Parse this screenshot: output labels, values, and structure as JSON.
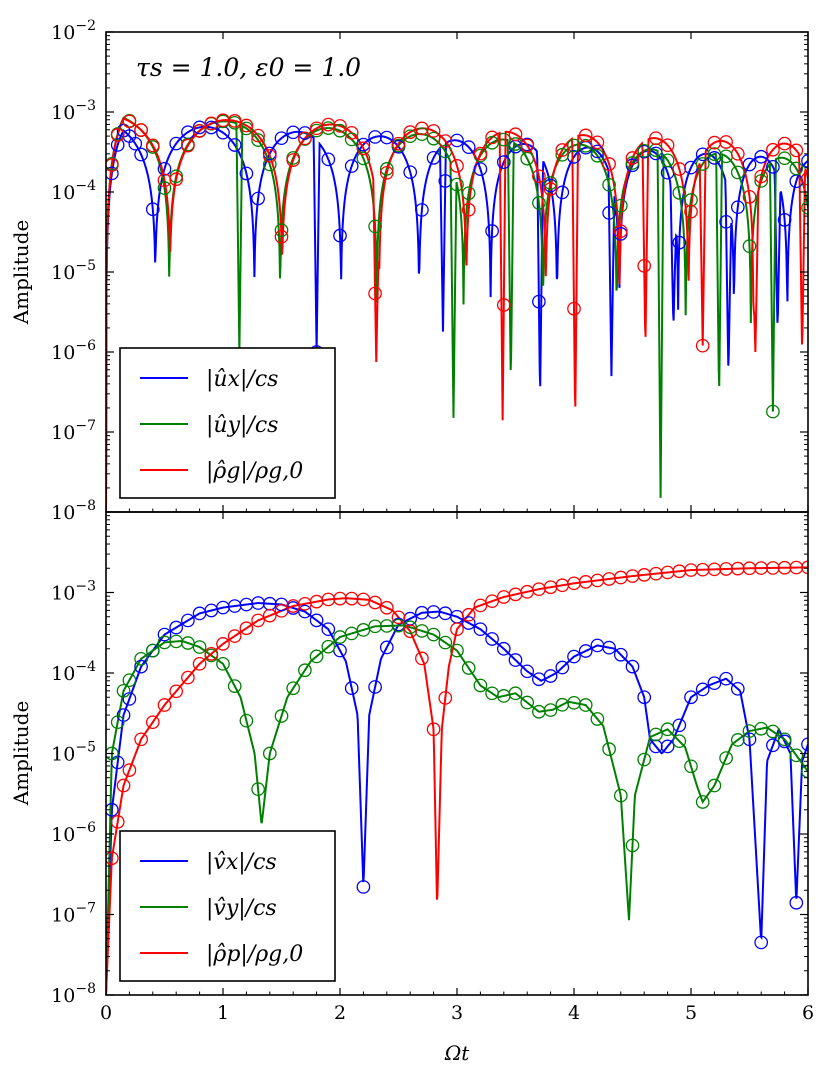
{
  "chart_data": [
    {
      "type": "line",
      "panel": "top",
      "title": "",
      "annotation": "τs = 1.0, ε0 = 1.0",
      "xlabel": "",
      "ylabel": "Amplitude",
      "xlim": [
        0,
        6
      ],
      "ylim": [
        1e-08,
        0.01
      ],
      "yscale": "log",
      "xticks": [
        0,
        1,
        2,
        3,
        4,
        5,
        6
      ],
      "yticks": [
        -8,
        -7,
        -6,
        -5,
        -4,
        -3,
        -2
      ],
      "legend_location": "lower-left",
      "series": [
        {
          "name": "|ûx|/cs",
          "color": "#0000ff",
          "amplitude": 0.00075,
          "decay": 0.18,
          "period": 2.0,
          "phase": 0.06,
          "floor": 1.2e-05,
          "freq_growth": 0.32,
          "dips": [
            {
              "x": 1.8,
              "y": 1e-06
            },
            {
              "x": 2.88,
              "y": 1.8e-06
            },
            {
              "x": 3.71,
              "y": 2.5e-07
            },
            {
              "x": 4.32,
              "y": 5e-07
            },
            {
              "x": 4.85,
              "y": 2e-06
            },
            {
              "x": 5.32,
              "y": 5e-07
            },
            {
              "x": 5.74,
              "y": 1.8e-06
            }
          ]
        },
        {
          "name": "|ûy|/cs",
          "color": "#008000",
          "amplitude": 0.00095,
          "decay": 0.22,
          "period": 2.28,
          "phase": 1.14,
          "floor": 8e-06,
          "freq_growth": 0.3,
          "dips": [
            {
              "x": 1.14,
              "y": 1e-06
            },
            {
              "x": 2.97,
              "y": 1.5e-07
            },
            {
              "x": 3.46,
              "y": 4e-07
            },
            {
              "x": 4.74,
              "y": 1.5e-08
            },
            {
              "x": 5.24,
              "y": 2.5e-07
            },
            {
              "x": 5.7,
              "y": 1.8e-07
            }
          ]
        },
        {
          "name": "|ρ̂g|/ρg,0",
          "color": "#ff0000",
          "amplitude": 0.0009,
          "decay": 0.14,
          "period": 2.32,
          "phase": 1.16,
          "floor": 2e-05,
          "freq_growth": 0.31,
          "dips": [
            {
              "x": 2.31,
              "y": 7.5e-07
            },
            {
              "x": 3.39,
              "y": 1.4e-07
            },
            {
              "x": 4.01,
              "y": 1.3e-07
            },
            {
              "x": 4.61,
              "y": 1.1e-06
            },
            {
              "x": 5.1,
              "y": 1.2e-06
            },
            {
              "x": 5.55,
              "y": 1e-06
            },
            {
              "x": 5.95,
              "y": 9e-07
            }
          ]
        }
      ],
      "markers": [
        {
          "series": 0,
          "x": [
            0.05,
            0.1,
            0.15,
            0.2,
            0.25,
            0.3,
            0.4,
            0.5,
            0.6,
            0.7,
            0.8,
            0.9,
            1.0,
            1.1,
            1.2,
            1.3,
            1.4,
            1.5,
            1.6,
            1.7,
            1.8,
            1.9,
            2.0,
            2.1,
            2.2,
            2.3,
            2.4,
            2.5,
            2.6,
            2.7,
            2.8,
            2.9,
            3.0,
            3.1,
            3.2,
            3.3,
            3.4,
            3.5,
            3.6,
            3.7,
            3.8,
            3.9,
            4.0,
            4.1,
            4.2,
            4.3,
            4.4,
            4.5,
            4.6,
            4.7,
            4.8,
            4.9,
            5.0,
            5.1,
            5.2,
            5.3,
            5.4,
            5.5,
            5.6,
            5.7,
            5.8,
            5.9,
            6.0
          ]
        },
        {
          "series": 1,
          "x": [
            0.05,
            0.1,
            0.2,
            0.3,
            0.4,
            0.5,
            0.6,
            0.7,
            0.8,
            0.9,
            1.0,
            1.1,
            1.2,
            1.3,
            1.4,
            1.5,
            1.6,
            1.7,
            1.8,
            1.9,
            2.0,
            2.1,
            2.2,
            2.3,
            2.4,
            2.5,
            2.6,
            2.7,
            2.8,
            2.9,
            3.0,
            3.1,
            3.2,
            3.3,
            3.4,
            3.5,
            3.6,
            3.7,
            3.8,
            3.9,
            4.0,
            4.1,
            4.2,
            4.3,
            4.4,
            4.5,
            4.6,
            4.7,
            4.8,
            4.9,
            5.0,
            5.1,
            5.2,
            5.3,
            5.4,
            5.5,
            5.6,
            5.7,
            5.8,
            5.9,
            6.0
          ]
        },
        {
          "series": 2,
          "x": [
            0.05,
            0.1,
            0.2,
            0.3,
            0.4,
            0.5,
            0.6,
            0.7,
            0.8,
            0.9,
            1.0,
            1.1,
            1.2,
            1.3,
            1.4,
            1.5,
            1.6,
            1.7,
            1.8,
            1.9,
            2.0,
            2.1,
            2.2,
            2.3,
            2.4,
            2.5,
            2.6,
            2.7,
            2.8,
            2.9,
            3.0,
            3.1,
            3.2,
            3.3,
            3.4,
            3.5,
            3.6,
            3.7,
            3.8,
            3.9,
            4.0,
            4.1,
            4.2,
            4.3,
            4.4,
            4.5,
            4.6,
            4.7,
            4.8,
            4.9,
            5.0,
            5.1,
            5.2,
            5.3,
            5.4,
            5.5,
            5.6,
            5.7,
            5.8,
            5.9,
            6.0
          ]
        }
      ]
    },
    {
      "type": "line",
      "panel": "bottom",
      "title": "",
      "xlabel": "Ωt",
      "ylabel": "Amplitude",
      "xlim": [
        0,
        6
      ],
      "ylim": [
        1e-08,
        0.01
      ],
      "yscale": "log",
      "xticks": [
        0,
        1,
        2,
        3,
        4,
        5,
        6
      ],
      "yticks": [
        -8,
        -7,
        -6,
        -5,
        -4,
        -3
      ],
      "legend_location": "lower-left",
      "series": [
        {
          "name": "|v̂x|/cs",
          "color": "#0000ff",
          "anchors": [
            [
              0,
              1e-08
            ],
            [
              0.05,
              2e-06
            ],
            [
              0.15,
              3e-05
            ],
            [
              0.3,
              0.00012
            ],
            [
              0.5,
              0.0003
            ],
            [
              0.8,
              0.00055
            ],
            [
              1.0,
              0.00065
            ],
            [
              1.3,
              0.00074
            ],
            [
              1.5,
              0.00071
            ],
            [
              1.7,
              0.00058
            ],
            [
              1.9,
              0.00035
            ],
            [
              2.05,
              0.00014
            ],
            [
              2.15,
              3e-05
            ],
            [
              2.2,
              2.2e-07
            ],
            [
              2.25,
              3e-05
            ],
            [
              2.35,
              0.00015
            ],
            [
              2.5,
              0.0004
            ],
            [
              2.7,
              0.00056
            ],
            [
              2.85,
              0.00058
            ],
            [
              3.0,
              0.0005
            ],
            [
              3.2,
              0.00035
            ],
            [
              3.4,
              0.0002
            ],
            [
              3.6,
              0.000105
            ],
            [
              3.72,
              8e-05
            ],
            [
              3.85,
              0.0001
            ],
            [
              4.0,
              0.00016
            ],
            [
              4.2,
              0.00022
            ],
            [
              4.35,
              0.0002
            ],
            [
              4.5,
              0.00012
            ],
            [
              4.6,
              5e-05
            ],
            [
              4.65,
              1.5e-05
            ],
            [
              4.75,
              1e-05
            ],
            [
              4.85,
              1.5e-05
            ],
            [
              5.0,
              5e-05
            ],
            [
              5.15,
              7e-05
            ],
            [
              5.3,
              8.5e-05
            ],
            [
              5.42,
              6e-05
            ],
            [
              5.5,
              1.5e-05
            ],
            [
              5.6,
              4.5e-08
            ],
            [
              5.65,
              8e-06
            ],
            [
              5.75,
              2e-05
            ],
            [
              5.85,
              1e-05
            ],
            [
              5.9,
              1.4e-07
            ],
            [
              5.95,
              8e-06
            ],
            [
              6.0,
              1.3e-05
            ]
          ]
        },
        {
          "name": "|v̂y|/cs",
          "color": "#008000",
          "anchors": [
            [
              0,
              1e-08
            ],
            [
              0.05,
              1e-05
            ],
            [
              0.15,
              6e-05
            ],
            [
              0.3,
              0.00015
            ],
            [
              0.5,
              0.00024
            ],
            [
              0.65,
              0.00025
            ],
            [
              0.8,
              0.00021
            ],
            [
              1.0,
              0.00013
            ],
            [
              1.15,
              5e-05
            ],
            [
              1.27,
              1e-05
            ],
            [
              1.33,
              1.3e-06
            ],
            [
              1.4,
              1e-05
            ],
            [
              1.55,
              5e-05
            ],
            [
              1.75,
              0.00014
            ],
            [
              2.0,
              0.00028
            ],
            [
              2.3,
              0.00038
            ],
            [
              2.55,
              0.00039
            ],
            [
              2.8,
              0.0003
            ],
            [
              3.0,
              0.00019
            ],
            [
              3.2,
              7e-05
            ],
            [
              3.35,
              5e-05
            ],
            [
              3.5,
              5.6e-05
            ],
            [
              3.7,
              3.3e-05
            ],
            [
              3.82,
              3.5e-05
            ],
            [
              3.95,
              4.4e-05
            ],
            [
              4.1,
              4e-05
            ],
            [
              4.25,
              2.2e-05
            ],
            [
              4.4,
              3e-06
            ],
            [
              4.47,
              8.5e-08
            ],
            [
              4.52,
              3e-06
            ],
            [
              4.65,
              1.6e-05
            ],
            [
              4.8,
              2e-05
            ],
            [
              4.95,
              1.2e-05
            ],
            [
              5.05,
              4e-06
            ],
            [
              5.1,
              2.5e-06
            ],
            [
              5.2,
              4e-06
            ],
            [
              5.35,
              1.3e-05
            ],
            [
              5.5,
              1.9e-05
            ],
            [
              5.65,
              2.1e-05
            ],
            [
              5.8,
              1.5e-05
            ],
            [
              6.0,
              6e-06
            ]
          ]
        },
        {
          "name": "|ρ̂p|/ρg,0",
          "color": "#ff0000",
          "anchors": [
            [
              0,
              1e-08
            ],
            [
              0.05,
              5e-07
            ],
            [
              0.15,
              4e-06
            ],
            [
              0.3,
              1.5e-05
            ],
            [
              0.5,
              4e-05
            ],
            [
              0.8,
              0.00013
            ],
            [
              1.0,
              0.00023
            ],
            [
              1.3,
              0.00045
            ],
            [
              1.6,
              0.00068
            ],
            [
              1.9,
              0.00082
            ],
            [
              2.05,
              0.00085
            ],
            [
              2.25,
              0.00081
            ],
            [
              2.45,
              0.0006
            ],
            [
              2.6,
              0.00033
            ],
            [
              2.72,
              0.00013
            ],
            [
              2.8,
              2e-05
            ],
            [
              2.83,
              1.2e-07
            ],
            [
              2.87,
              2e-05
            ],
            [
              2.93,
              0.00012
            ],
            [
              3.0,
              0.00035
            ],
            [
              3.15,
              0.00065
            ],
            [
              3.4,
              0.00088
            ],
            [
              3.7,
              0.0011
            ],
            [
              4.0,
              0.0013
            ],
            [
              4.5,
              0.0016
            ],
            [
              5.0,
              0.0019
            ],
            [
              5.5,
              0.002
            ],
            [
              6.0,
              0.00205
            ]
          ]
        }
      ],
      "markers": [
        {
          "series": 0,
          "x": [
            0.05,
            0.1,
            0.15,
            0.2,
            0.3,
            0.4,
            0.5,
            0.6,
            0.7,
            0.8,
            0.9,
            1.0,
            1.1,
            1.2,
            1.3,
            1.4,
            1.5,
            1.6,
            1.7,
            1.8,
            1.9,
            2.0,
            2.1,
            2.2,
            2.3,
            2.4,
            2.5,
            2.6,
            2.7,
            2.8,
            2.9,
            3.0,
            3.1,
            3.2,
            3.3,
            3.4,
            3.5,
            3.6,
            3.7,
            3.8,
            3.9,
            4.0,
            4.1,
            4.2,
            4.3,
            4.4,
            4.5,
            4.6,
            4.7,
            4.8,
            4.9,
            5.0,
            5.1,
            5.2,
            5.3,
            5.4,
            5.5,
            5.6,
            5.7,
            5.8,
            5.9,
            6.0
          ]
        },
        {
          "series": 1,
          "x": [
            0.05,
            0.1,
            0.15,
            0.2,
            0.3,
            0.4,
            0.5,
            0.6,
            0.7,
            0.8,
            0.9,
            1.0,
            1.1,
            1.2,
            1.3,
            1.4,
            1.5,
            1.6,
            1.7,
            1.8,
            1.9,
            2.0,
            2.1,
            2.2,
            2.3,
            2.4,
            2.5,
            2.6,
            2.7,
            2.8,
            2.9,
            3.0,
            3.1,
            3.2,
            3.3,
            3.4,
            3.5,
            3.6,
            3.7,
            3.8,
            3.9,
            4.0,
            4.1,
            4.2,
            4.3,
            4.4,
            4.5,
            4.6,
            4.7,
            4.8,
            4.9,
            5.0,
            5.1,
            5.2,
            5.3,
            5.4,
            5.5,
            5.6,
            5.7,
            5.8,
            5.9,
            6.0
          ]
        },
        {
          "series": 2,
          "x": [
            0.05,
            0.1,
            0.15,
            0.2,
            0.3,
            0.4,
            0.5,
            0.6,
            0.7,
            0.8,
            0.9,
            1.0,
            1.1,
            1.2,
            1.3,
            1.4,
            1.5,
            1.6,
            1.7,
            1.8,
            1.9,
            2.0,
            2.1,
            2.2,
            2.3,
            2.4,
            2.5,
            2.6,
            2.7,
            2.8,
            2.9,
            3.0,
            3.1,
            3.2,
            3.3,
            3.4,
            3.5,
            3.6,
            3.7,
            3.8,
            3.9,
            4.0,
            4.1,
            4.2,
            4.3,
            4.4,
            4.5,
            4.6,
            4.7,
            4.8,
            4.9,
            5.0,
            5.1,
            5.2,
            5.3,
            5.4,
            5.5,
            5.6,
            5.7,
            5.8,
            5.9,
            6.0
          ]
        }
      ]
    }
  ]
}
